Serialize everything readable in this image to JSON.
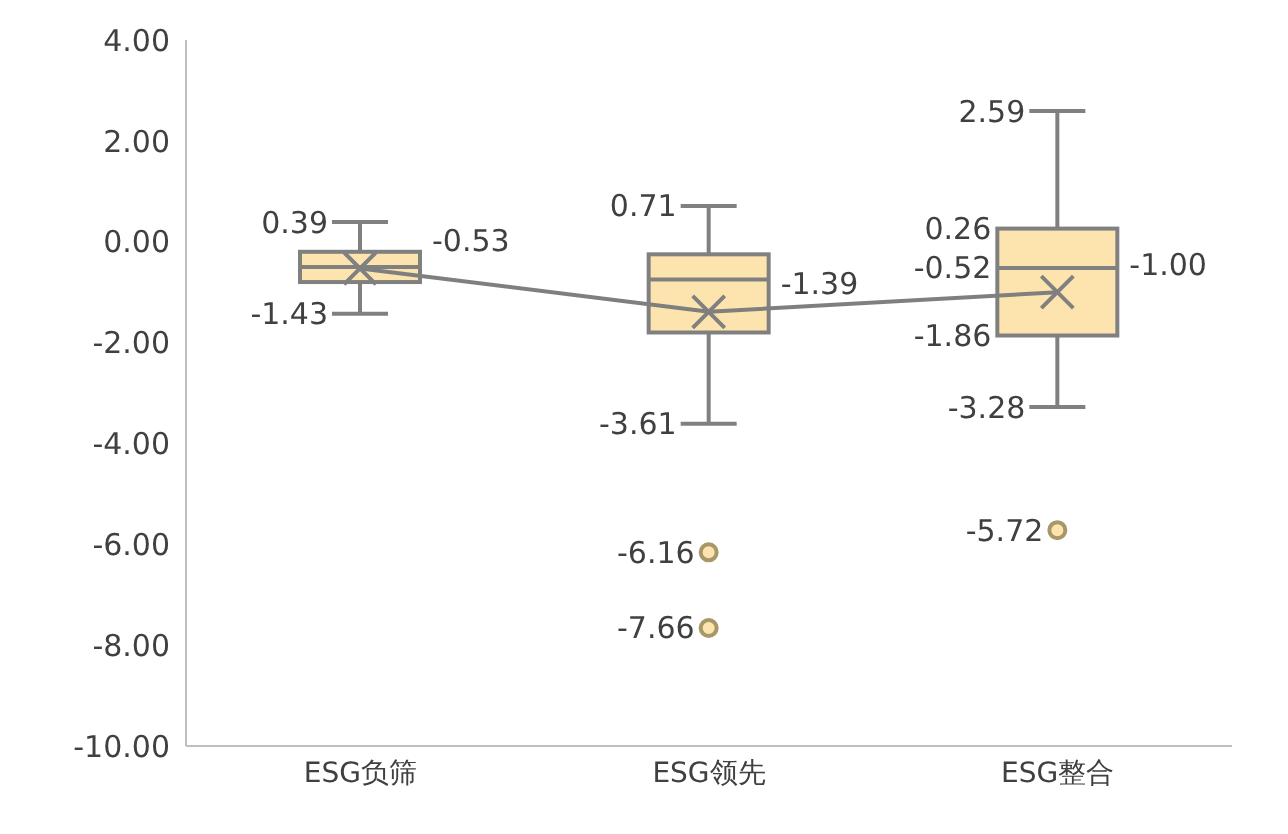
{
  "chart_data": {
    "type": "box",
    "categories": [
      "ESG负筛",
      "ESG领先",
      "ESG整合"
    ],
    "series": [
      {
        "type": "box",
        "color": "#fde4ae",
        "boxes": [
          {
            "low": -1.43,
            "q1": -0.8,
            "median": -0.5,
            "q3": -0.2,
            "high": 0.39,
            "mean": -0.53
          },
          {
            "low": -3.61,
            "q1": -1.8,
            "median": -0.75,
            "q3": -0.25,
            "high": 0.71,
            "mean": -1.39,
            "outliers": [
              -6.16,
              -7.66
            ]
          },
          {
            "low": -3.28,
            "q1": -1.86,
            "median": -0.52,
            "q3": 0.26,
            "high": 2.59,
            "mean": -1.0,
            "outliers": [
              -5.72
            ]
          }
        ]
      },
      {
        "type": "line",
        "color": "#7f7f7f",
        "values": [
          -0.53,
          -1.39,
          -1.0
        ]
      }
    ],
    "ylim": [
      -10,
      4
    ],
    "yticks": [
      {
        "value": -10,
        "label": "-10.00"
      },
      {
        "value": -8,
        "label": "-8.00"
      },
      {
        "value": -6,
        "label": "-6.00"
      },
      {
        "value": -4,
        "label": "-4.00"
      },
      {
        "value": -2,
        "label": "-2.00"
      },
      {
        "value": 0,
        "label": "0.00"
      },
      {
        "value": 2,
        "label": "2.00"
      },
      {
        "value": 4,
        "label": "4.00"
      }
    ],
    "annotations": [
      {
        "text": "0.39",
        "x": "ESG负筛",
        "y": 0.39
      },
      {
        "text": "-0.53",
        "x": "ESG负筛",
        "y": -0.53
      },
      {
        "text": "-1.43",
        "x": "ESG负筛",
        "y": -1.43
      },
      {
        "text": "0.71",
        "x": "ESG领先",
        "y": 0.71
      },
      {
        "text": "-1.39",
        "x": "ESG领先",
        "y": -1.39
      },
      {
        "text": "-3.61",
        "x": "ESG领先",
        "y": -3.61
      },
      {
        "text": "2.59",
        "x": "ESG整合",
        "y": 2.59
      },
      {
        "text": "0.26",
        "x": "ESG整合",
        "y": 0.26
      },
      {
        "text": "-0.52",
        "x": "ESG整合",
        "y": -0.52
      },
      {
        "text": "-1.00",
        "x": "ESG整合",
        "y": -1.0
      },
      {
        "text": "-1.86",
        "x": "ESG整合",
        "y": -1.86
      },
      {
        "text": "-3.28",
        "x": "ESG整合",
        "y": -3.28
      },
      "-6.16",
      "-7.66",
      "-5.72"
    ]
  }
}
